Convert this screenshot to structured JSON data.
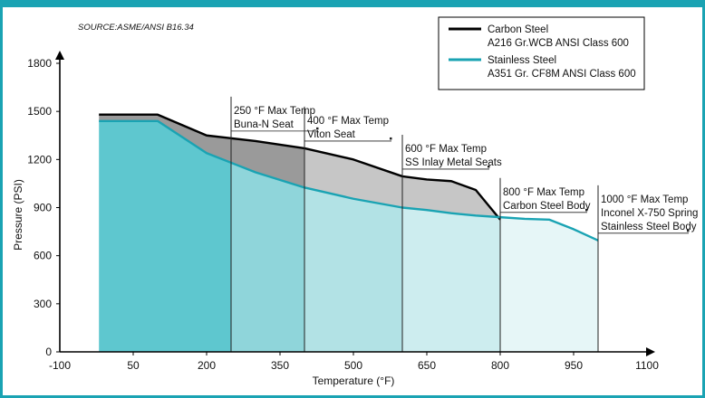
{
  "chart_data": {
    "type": "area",
    "source": "SOURCE:ASME/ANSI B16.34",
    "xlabel": "Temperature (°F)",
    "ylabel": "Pressure (PSI)",
    "xlim": [
      -100,
      1100
    ],
    "ylim": [
      0,
      1800
    ],
    "x_ticks": [
      "-100",
      "50",
      "200",
      "350",
      "500",
      "650",
      "800",
      "950",
      "1100"
    ],
    "y_ticks": [
      "0",
      "300",
      "600",
      "900",
      "1200",
      "1500",
      "1800"
    ],
    "x_tick_values": [
      -100,
      50,
      200,
      350,
      500,
      650,
      800,
      950,
      1100
    ],
    "y_tick_values": [
      0,
      300,
      600,
      900,
      1200,
      1500,
      1800
    ],
    "series": [
      {
        "name": "Carbon Steel",
        "sublabel": "A216 Gr.WCB ANSI Class 600",
        "color": "#000000",
        "x": [
          -20,
          100,
          200,
          300,
          400,
          500,
          600,
          650,
          700,
          750,
          800
        ],
        "y": [
          1480,
          1480,
          1350,
          1315,
          1270,
          1200,
          1095,
          1075,
          1065,
          1010,
          825
        ]
      },
      {
        "name": "Stainless Steel",
        "sublabel": "A351 Gr. CF8M ANSI Class 600",
        "color": "#1aa3b3",
        "x": [
          -20,
          100,
          200,
          300,
          400,
          500,
          600,
          650,
          700,
          750,
          800,
          850,
          900,
          950,
          1000
        ],
        "y": [
          1440,
          1440,
          1240,
          1120,
          1025,
          955,
          900,
          885,
          865,
          850,
          840,
          830,
          825,
          765,
          695
        ]
      }
    ],
    "fill_colors": [
      "#5ec7cf",
      "#8fd5da",
      "#b2e2e5",
      "#cdedef",
      "#e6f6f7"
    ],
    "gap_color_dark": "#9a9a9a",
    "gap_color_light": "#c6c6c6",
    "zones": [
      {
        "x": 250,
        "title": "250 °F Max Temp",
        "subtitle": "Buna-N Seat"
      },
      {
        "x": 400,
        "title": "400 °F Max Temp",
        "subtitle": "Viton Seat"
      },
      {
        "x": 600,
        "title": "600 °F Max Temp",
        "subtitle": "SS Inlay Metal Seats"
      },
      {
        "x": 800,
        "title": "800 °F Max Temp",
        "subtitle": "Carbon Steel Body"
      },
      {
        "x": 1000,
        "title": "1000 °F Max Temp",
        "subtitle": "Inconel X-750 Spring",
        "subtitle2": "Stainless Steel Body"
      }
    ]
  }
}
